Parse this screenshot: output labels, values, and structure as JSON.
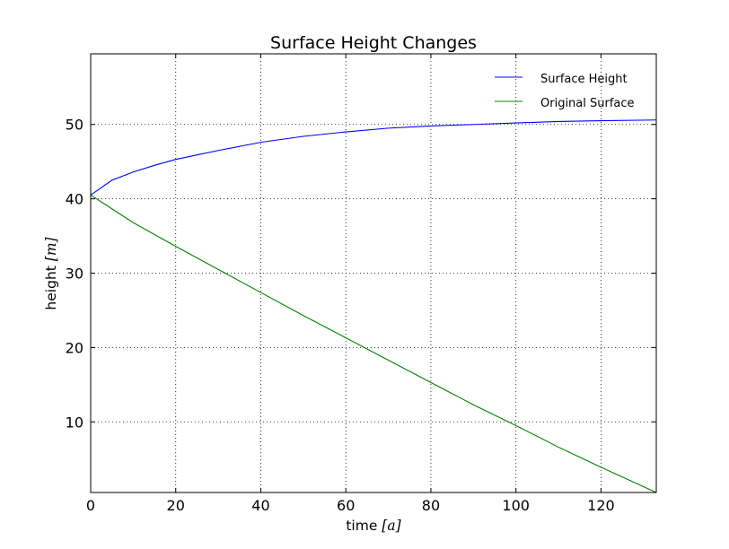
{
  "chart_data": {
    "type": "line",
    "title": "Surface Height Changes",
    "xlabel": {
      "text": "time ",
      "math": "[a]"
    },
    "ylabel": {
      "text": "height ",
      "math": "[m]"
    },
    "xlim": [
      0,
      133
    ],
    "ylim": [
      0.5,
      59.5
    ],
    "xticks": [
      0,
      20,
      40,
      60,
      80,
      100,
      120
    ],
    "yticks": [
      10,
      20,
      30,
      40,
      50
    ],
    "grid": true,
    "legend_position": "top-right",
    "series": [
      {
        "name": "Surface Height",
        "color": "#0000ff",
        "x": [
          0,
          2,
          5,
          10,
          15,
          20,
          25,
          30,
          40,
          50,
          60,
          70,
          80,
          90,
          100,
          110,
          120,
          133
        ],
        "y": [
          40.5,
          41.3,
          42.5,
          43.6,
          44.5,
          45.3,
          45.9,
          46.5,
          47.6,
          48.4,
          49.0,
          49.5,
          49.8,
          50.0,
          50.2,
          50.4,
          50.5,
          50.6
        ]
      },
      {
        "name": "Original Surface",
        "color": "#008000",
        "x": [
          0,
          10,
          20,
          30,
          40,
          50,
          60,
          70,
          80,
          90,
          100,
          110,
          120,
          133
        ],
        "y": [
          40.5,
          36.8,
          33.6,
          30.5,
          27.4,
          24.3,
          21.3,
          18.3,
          15.3,
          12.3,
          9.5,
          6.6,
          3.9,
          0.5
        ]
      }
    ]
  }
}
